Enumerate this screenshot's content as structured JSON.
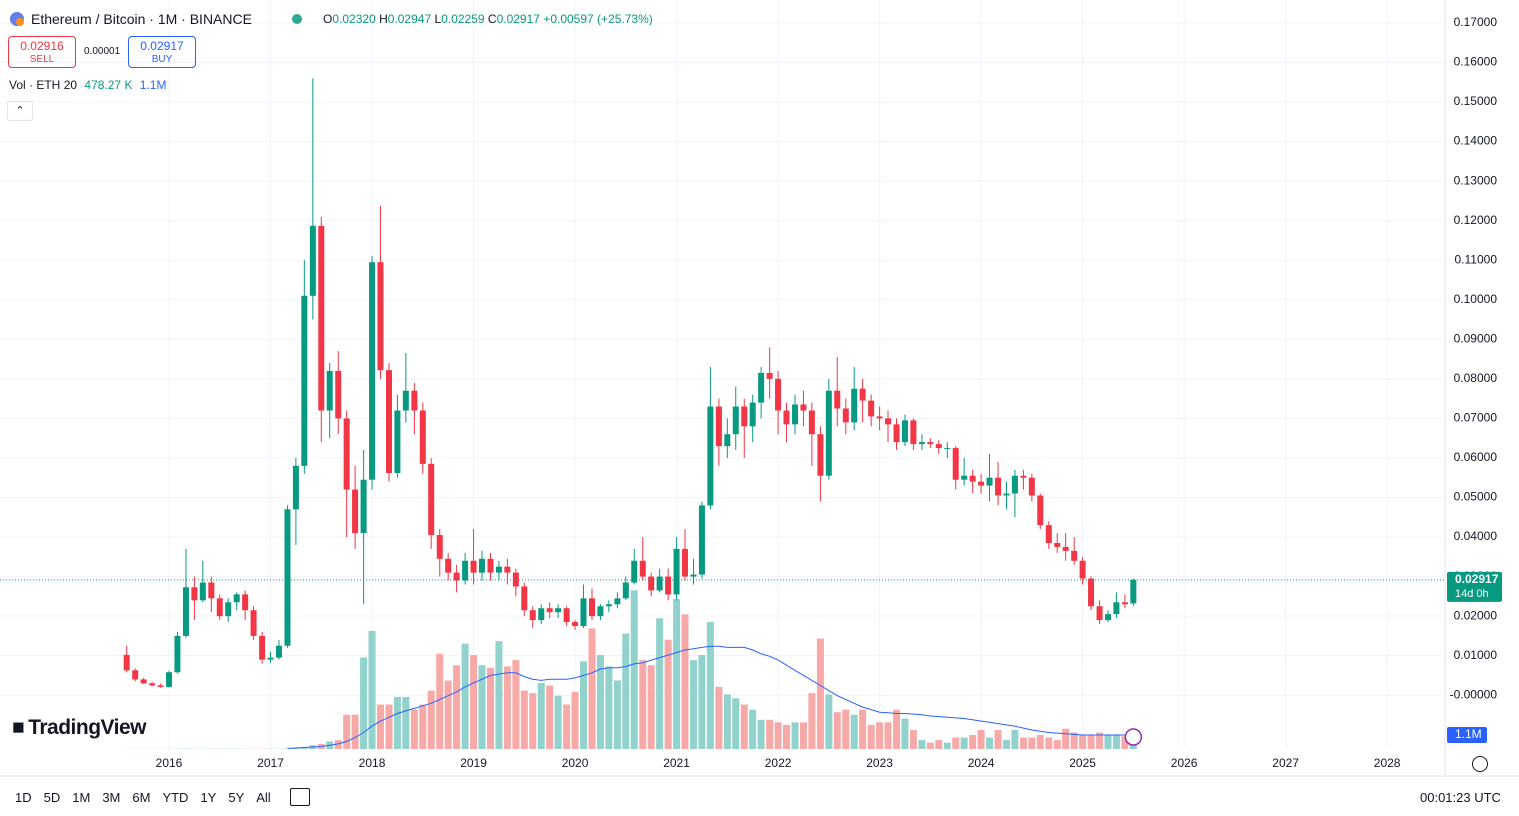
{
  "chart_data": {
    "type": "candlestick",
    "title": "Ethereum / Bitcoin · 1M · BINANCE",
    "legend": {
      "labels": [
        "O",
        "H",
        "L",
        "C"
      ],
      "values": [
        "0.02320",
        "0.02947",
        "0.02259",
        "0.02917"
      ],
      "change": "+0.00597 (+25.73%)"
    },
    "volume_title": "Vol · ETH",
    "ma_length": 20,
    "volume_value_label": "478.27 K",
    "ma_value_label": "1.1M",
    "price_tag": {
      "price_label": "0.02917",
      "countdown": "14d 0h"
    },
    "up_color": "#089981",
    "down_color": "#f23645",
    "up_volume_color": "#92d2cc",
    "down_volume_color": "#f7a9a7",
    "ma_color": "#2962ff",
    "grid": true,
    "xlim": [
      2014.335,
      2028.57
    ],
    "xticks": [
      2016,
      2017,
      2018,
      2019,
      2020,
      2021,
      2022,
      2023,
      2024,
      2025,
      2026,
      2027,
      2028
    ],
    "ylim": [
      -0.0136,
      0.1758
    ],
    "yticks": [
      {
        "value": 0.17,
        "label": "0.17000"
      },
      {
        "value": 0.16,
        "label": "0.16000"
      },
      {
        "value": 0.15,
        "label": "0.15000"
      },
      {
        "value": 0.14,
        "label": "0.14000"
      },
      {
        "value": 0.13,
        "label": "0.13000"
      },
      {
        "value": 0.12,
        "label": "0.12000"
      },
      {
        "value": 0.11,
        "label": "0.11000"
      },
      {
        "value": 0.1,
        "label": "0.10000"
      },
      {
        "value": 0.09,
        "label": "0.09000"
      },
      {
        "value": 0.08,
        "label": "0.08000"
      },
      {
        "value": 0.07,
        "label": "0.07000"
      },
      {
        "value": 0.06,
        "label": "0.06000"
      },
      {
        "value": 0.05,
        "label": "0.05000"
      },
      {
        "value": 0.04,
        "label": "0.04000"
      },
      {
        "value": 0.03,
        "label": "0.03000"
      },
      {
        "value": 0.02,
        "label": "0.02000"
      },
      {
        "value": 0.01,
        "label": "0.01000"
      },
      {
        "value": 0,
        "label": "-0.00000"
      }
    ],
    "vlim": [
      0,
      59
    ],
    "x": [
      2015.583,
      2015.667,
      2015.75,
      2015.833,
      2015.917,
      2016,
      2016.083,
      2016.167,
      2016.25,
      2016.333,
      2016.417,
      2016.5,
      2016.583,
      2016.667,
      2016.75,
      2016.833,
      2016.917,
      2017,
      2017.083,
      2017.167,
      2017.25,
      2017.333,
      2017.417,
      2017.5,
      2017.583,
      2017.667,
      2017.75,
      2017.833,
      2017.917,
      2018,
      2018.083,
      2018.167,
      2018.25,
      2018.333,
      2018.417,
      2018.5,
      2018.583,
      2018.667,
      2018.75,
      2018.833,
      2018.917,
      2019,
      2019.083,
      2019.167,
      2019.25,
      2019.333,
      2019.417,
      2019.5,
      2019.583,
      2019.667,
      2019.75,
      2019.833,
      2019.917,
      2020,
      2020.083,
      2020.167,
      2020.25,
      2020.333,
      2020.417,
      2020.5,
      2020.583,
      2020.667,
      2020.75,
      2020.833,
      2020.917,
      2021,
      2021.083,
      2021.167,
      2021.25,
      2021.333,
      2021.417,
      2021.5,
      2021.583,
      2021.667,
      2021.75,
      2021.833,
      2021.917,
      2022,
      2022.083,
      2022.167,
      2022.25,
      2022.333,
      2022.417,
      2022.5,
      2022.583,
      2022.667,
      2022.75,
      2022.833,
      2022.917,
      2023,
      2023.083,
      2023.167,
      2023.25,
      2023.333,
      2023.417,
      2023.5,
      2023.583,
      2023.667,
      2023.75,
      2023.833,
      2023.917,
      2024,
      2024.083,
      2024.167,
      2024.25,
      2024.333,
      2024.417,
      2024.5,
      2024.583,
      2024.667,
      2024.75,
      2024.833,
      2024.917,
      2025,
      2025.083,
      2025.167,
      2025.25,
      2025.333,
      2025.417,
      2025.5
    ],
    "open": [
      0.0102,
      0.0063,
      0.004,
      0.003,
      0.0025,
      0.0021,
      0.0058,
      0.015,
      0.0273,
      0.024,
      0.0285,
      0.0245,
      0.02,
      0.0235,
      0.0255,
      0.0215,
      0.015,
      0.009,
      0.0095,
      0.0125,
      0.047,
      0.058,
      0.101,
      0.1187,
      0.072,
      0.082,
      0.07,
      0.052,
      0.041,
      0.0545,
      0.1095,
      0.0822,
      0.0562,
      0.072,
      0.077,
      0.072,
      0.0585,
      0.0405,
      0.0345,
      0.031,
      0.029,
      0.034,
      0.031,
      0.0345,
      0.031,
      0.0325,
      0.031,
      0.0275,
      0.0215,
      0.019,
      0.022,
      0.021,
      0.022,
      0.0185,
      0.0175,
      0.0245,
      0.02,
      0.0225,
      0.023,
      0.0245,
      0.0285,
      0.034,
      0.03,
      0.0265,
      0.03,
      0.0255,
      0.037,
      0.03,
      0.0305,
      0.048,
      0.073,
      0.063,
      0.066,
      0.073,
      0.068,
      0.074,
      0.0815,
      0.08,
      0.072,
      0.0685,
      0.0735,
      0.072,
      0.066,
      0.0555,
      0.077,
      0.0725,
      0.069,
      0.0775,
      0.0745,
      0.0705,
      0.07,
      0.0685,
      0.064,
      0.0695,
      0.0635,
      0.064,
      0.0635,
      0.0625,
      0.0625,
      0.0545,
      0.0555,
      0.054,
      0.053,
      0.055,
      0.0505,
      0.051,
      0.0555,
      0.055,
      0.0505,
      0.043,
      0.0385,
      0.0375,
      0.0365,
      0.034,
      0.0295,
      0.0225,
      0.019,
      0.0205,
      0.0235,
      0.0232
    ],
    "high": [
      0.0125,
      0.0068,
      0.0044,
      0.0034,
      0.003,
      0.0062,
      0.016,
      0.037,
      0.03,
      0.034,
      0.03,
      0.0255,
      0.0245,
      0.026,
      0.0265,
      0.0225,
      0.016,
      0.011,
      0.014,
      0.048,
      0.06,
      0.11,
      0.156,
      0.121,
      0.084,
      0.087,
      0.072,
      0.058,
      0.062,
      0.111,
      0.1237,
      0.084,
      0.076,
      0.0865,
      0.079,
      0.074,
      0.06,
      0.042,
      0.036,
      0.033,
      0.036,
      0.042,
      0.0365,
      0.036,
      0.034,
      0.0345,
      0.032,
      0.0285,
      0.0225,
      0.023,
      0.0235,
      0.023,
      0.0225,
      0.019,
      0.028,
      0.027,
      0.023,
      0.024,
      0.026,
      0.03,
      0.037,
      0.04,
      0.031,
      0.032,
      0.032,
      0.04,
      0.042,
      0.0345,
      0.049,
      0.083,
      0.075,
      0.07,
      0.078,
      0.075,
      0.076,
      0.083,
      0.088,
      0.082,
      0.074,
      0.076,
      0.077,
      0.074,
      0.068,
      0.08,
      0.0855,
      0.075,
      0.083,
      0.08,
      0.076,
      0.073,
      0.072,
      0.07,
      0.071,
      0.07,
      0.066,
      0.065,
      0.0645,
      0.064,
      0.063,
      0.06,
      0.057,
      0.056,
      0.061,
      0.059,
      0.054,
      0.057,
      0.057,
      0.056,
      0.051,
      0.044,
      0.041,
      0.041,
      0.04,
      0.035,
      0.03,
      0.024,
      0.0215,
      0.026,
      0.0255,
      0.02947
    ],
    "low": [
      0.0058,
      0.0035,
      0.0028,
      0.0022,
      0.0019,
      0.0019,
      0.0055,
      0.0145,
      0.019,
      0.0235,
      0.021,
      0.019,
      0.0185,
      0.0215,
      0.019,
      0.014,
      0.008,
      0.0082,
      0.009,
      0.012,
      0.038,
      0.056,
      0.095,
      0.064,
      0.065,
      0.066,
      0.04,
      0.037,
      0.023,
      0.052,
      0.08,
      0.054,
      0.055,
      0.069,
      0.066,
      0.056,
      0.037,
      0.03,
      0.029,
      0.026,
      0.028,
      0.028,
      0.029,
      0.029,
      0.029,
      0.028,
      0.025,
      0.02,
      0.017,
      0.018,
      0.0195,
      0.0195,
      0.0175,
      0.0165,
      0.017,
      0.019,
      0.019,
      0.021,
      0.022,
      0.024,
      0.028,
      0.029,
      0.025,
      0.026,
      0.024,
      0.024,
      0.029,
      0.028,
      0.0295,
      0.047,
      0.058,
      0.06,
      0.062,
      0.06,
      0.064,
      0.07,
      0.075,
      0.066,
      0.064,
      0.066,
      0.068,
      0.058,
      0.049,
      0.0545,
      0.068,
      0.066,
      0.067,
      0.069,
      0.068,
      0.067,
      0.064,
      0.062,
      0.063,
      0.062,
      0.062,
      0.0625,
      0.061,
      0.06,
      0.052,
      0.053,
      0.051,
      0.051,
      0.049,
      0.048,
      0.047,
      0.045,
      0.052,
      0.049,
      0.042,
      0.037,
      0.036,
      0.034,
      0.033,
      0.028,
      0.0215,
      0.018,
      0.0185,
      0.0195,
      0.022,
      0.02259
    ],
    "close": [
      0.0063,
      0.004,
      0.003,
      0.0025,
      0.0021,
      0.0058,
      0.015,
      0.0273,
      0.024,
      0.0285,
      0.0245,
      0.02,
      0.0235,
      0.0255,
      0.0215,
      0.015,
      0.009,
      0.0095,
      0.0125,
      0.047,
      0.058,
      0.101,
      0.1187,
      0.072,
      0.082,
      0.07,
      0.052,
      0.041,
      0.0545,
      0.1095,
      0.0822,
      0.0562,
      0.072,
      0.077,
      0.072,
      0.0585,
      0.0405,
      0.0345,
      0.031,
      0.029,
      0.034,
      0.031,
      0.0345,
      0.031,
      0.0325,
      0.031,
      0.0275,
      0.0215,
      0.019,
      0.022,
      0.021,
      0.022,
      0.0185,
      0.0175,
      0.0245,
      0.02,
      0.0225,
      0.023,
      0.0245,
      0.0285,
      0.034,
      0.03,
      0.0265,
      0.03,
      0.0255,
      0.037,
      0.03,
      0.0305,
      0.048,
      0.073,
      0.063,
      0.066,
      0.073,
      0.068,
      0.074,
      0.0815,
      0.08,
      0.072,
      0.0685,
      0.0735,
      0.072,
      0.066,
      0.0555,
      0.077,
      0.0725,
      0.069,
      0.0775,
      0.0745,
      0.0705,
      0.07,
      0.0685,
      0.064,
      0.0695,
      0.0635,
      0.064,
      0.0635,
      0.0625,
      0.0625,
      0.0545,
      0.0555,
      0.054,
      0.053,
      0.055,
      0.0505,
      0.051,
      0.0555,
      0.055,
      0.0505,
      0.043,
      0.0385,
      0.0375,
      0.0365,
      0.034,
      0.0295,
      0.0225,
      0.019,
      0.0205,
      0.0235,
      0.023,
      0.02917
    ],
    "volume": [
      0.01,
      0.01,
      0.01,
      0.01,
      0.01,
      0.01,
      0.02,
      0.03,
      0.02,
      0.02,
      0.02,
      0.02,
      0.02,
      0.02,
      0.02,
      0.02,
      0.02,
      0.02,
      0.02,
      0.03,
      0.05,
      0.1,
      0.3,
      0.4,
      0.6,
      0.7,
      2.7,
      2.7,
      7.2,
      9.3,
      3.5,
      3.5,
      4.1,
      4.1,
      3.1,
      3.5,
      4.6,
      7.5,
      5.4,
      6.6,
      8.3,
      7.4,
      6.6,
      6.4,
      8.5,
      6.5,
      7,
      4.6,
      4.4,
      5.2,
      5,
      4.2,
      3.5,
      4.5,
      6.9,
      9.5,
      7.4,
      6.5,
      5.4,
      9.1,
      12.5,
      7,
      6.6,
      10.3,
      8.6,
      11.8,
      10.6,
      7,
      7.4,
      10,
      4.9,
      4.3,
      4,
      3.5,
      3.1,
      2.3,
      2.3,
      2.1,
      1.9,
      2.1,
      2.1,
      4.4,
      8.7,
      4.3,
      2.9,
      3.1,
      2.7,
      3.1,
      1.9,
      2.1,
      2.1,
      3.1,
      2.4,
      1.5,
      0.7,
      0.5,
      0.7,
      0.5,
      0.9,
      0.9,
      1.1,
      1.5,
      0.9,
      1.5,
      0.7,
      1.5,
      0.9,
      0.9,
      1.1,
      0.9,
      0.7,
      1.6,
      1.3,
      1.1,
      1.1,
      1.3,
      1.1,
      1.1,
      1,
      0.47827
    ],
    "ma": [
      null,
      null,
      null,
      null,
      null,
      null,
      null,
      null,
      null,
      null,
      null,
      null,
      null,
      null,
      null,
      null,
      null,
      null,
      null,
      0.05,
      0.08,
      0.12,
      0.16,
      0.2,
      0.3,
      0.4,
      0.6,
      0.9,
      1.3,
      1.8,
      2.2,
      2.5,
      2.8,
      3,
      3.2,
      3.4,
      3.6,
      3.9,
      4.2,
      4.5,
      4.9,
      5.2,
      5.5,
      5.8,
      5.9,
      6,
      6,
      5.7,
      5.5,
      5.4,
      5.5,
      5.5,
      5.5,
      5.6,
      5.8,
      6,
      6.3,
      6.4,
      6.4,
      6.5,
      6.7,
      6.8,
      7,
      7.2,
      7.4,
      7.6,
      7.8,
      7.9,
      8,
      8.1,
      8.1,
      8,
      8,
      8,
      7.8,
      7.5,
      7.3,
      7,
      6.6,
      6.2,
      5.8,
      5.4,
      5,
      4.6,
      4.2,
      3.9,
      3.6,
      3.3,
      3.1,
      2.9,
      2.85,
      2.8,
      2.8,
      2.75,
      2.7,
      2.6,
      2.55,
      2.5,
      2.45,
      2.4,
      2.3,
      2.2,
      2.1,
      2,
      1.9,
      1.8,
      1.65,
      1.5,
      1.4,
      1.3,
      1.25,
      1.2,
      1.15,
      1.1,
      1.1,
      1.1,
      1.1,
      1.1,
      1.1,
      1.1
    ]
  },
  "trade": {
    "sell_price": "0.02916",
    "sell": "SELL",
    "spread": "0.00001",
    "buy_price": "0.02917",
    "buy": "BUY"
  },
  "logo": "TradingView",
  "toolbar": {
    "timeframes": [
      "1D",
      "5D",
      "1M",
      "3M",
      "6M",
      "YTD",
      "1Y",
      "5Y",
      "All"
    ],
    "clock": "00:01:23 UTC"
  }
}
